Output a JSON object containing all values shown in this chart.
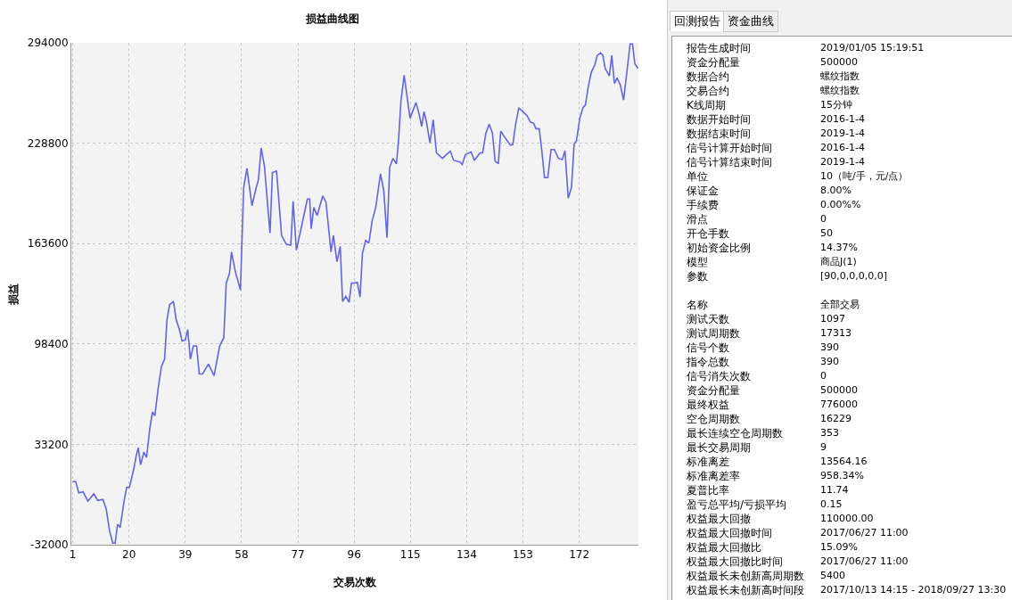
{
  "chart_data": [
    {
      "type": "line",
      "title": "损益曲线图",
      "xlabel": "交易次数",
      "ylabel": "损益",
      "grid": true,
      "marker": "none",
      "line_style": "solid",
      "xlim": [
        0.5,
        192
      ],
      "xticks": [
        1,
        20,
        39,
        58,
        77,
        96,
        115,
        134,
        153,
        172
      ],
      "ylim": [
        -32000,
        294000
      ],
      "yticks": [
        -32000,
        33200,
        98400,
        163600,
        228800,
        294000
      ],
      "x": [
        1,
        2,
        3,
        4.5,
        6.1,
        8.1,
        9.4,
        11.2,
        12.3,
        13.4,
        14.5,
        15.3,
        16.1,
        17,
        18.3,
        19.2,
        20.1,
        21.4,
        22.6,
        23.1,
        23.9,
        25,
        25.9,
        27,
        27.9,
        28.7,
        29.8,
        30.9,
        32,
        32.8,
        33.7,
        35,
        35.9,
        37,
        37.9,
        39,
        39.8,
        40.7,
        41.7,
        42.8,
        43.7,
        44.8,
        46.8,
        48.7,
        50.6,
        52,
        52.8,
        53.9,
        54.6,
        55.9,
        57.6,
        58.7,
        59.8,
        61.5,
        62.8,
        63.7,
        64.6,
        65.7,
        67.6,
        68.4,
        69.8,
        71.5,
        73.1,
        74.6,
        75.4,
        76.5,
        78.2,
        80.2,
        81,
        81.5,
        82.4,
        83.5,
        85.4,
        86.5,
        88.2,
        89,
        90.2,
        91.3,
        92.1,
        93.2,
        94.3,
        95.1,
        97.1,
        98,
        98.8,
        99.9,
        101,
        102.1,
        103.3,
        104.9,
        106,
        107.1,
        108,
        109.1,
        110.3,
        111,
        111.8,
        112.9,
        113.8,
        114.9,
        116.9,
        118,
        118.8,
        119.6,
        120.5,
        121.6,
        122.7,
        123.8,
        125.8,
        126.9,
        128.5,
        129.6,
        131.6,
        132.5,
        133.6,
        135.5,
        136.6,
        138.5,
        139.4,
        140.5,
        141.6,
        142.7,
        143.6,
        144.7,
        145.5,
        147.2,
        148.8,
        149.6,
        150.5,
        151.6,
        153,
        154.4,
        155.5,
        156.6,
        157.4,
        158.5,
        159.4,
        160.3,
        161.4,
        162.5,
        163.6,
        165,
        166.3,
        167.2,
        168.3,
        169.4,
        170.3,
        171.1,
        172.2,
        173.3,
        174.1,
        175,
        176.1,
        177.2,
        178.1,
        179.2,
        180,
        180.8,
        182.2,
        183,
        183.9,
        184.8,
        185.9,
        187,
        188.1,
        189.2,
        190,
        190.8,
        191.9
      ],
      "series": [
        {
          "color": "#6464dc",
          "values": [
            9200,
            8800,
            1700,
            2300,
            -3700,
            1000,
            -3200,
            -2600,
            -9000,
            -23000,
            -31000,
            -31000,
            -18700,
            -20800,
            -3700,
            5300,
            5300,
            15600,
            27400,
            31000,
            19900,
            28100,
            24600,
            43500,
            54200,
            51700,
            69200,
            83600,
            88500,
            114200,
            123900,
            126000,
            114200,
            107800,
            100300,
            100900,
            107800,
            88500,
            97100,
            97100,
            78900,
            78900,
            85300,
            77800,
            97100,
            102500,
            137800,
            144300,
            158200,
            145300,
            133500,
            200000,
            212400,
            188200,
            198900,
            205400,
            225700,
            214000,
            170400,
            209700,
            210700,
            168900,
            163100,
            162500,
            191000,
            159300,
            174300,
            192500,
            192500,
            173200,
            187100,
            181800,
            194600,
            190400,
            158200,
            168900,
            151800,
            161800,
            126000,
            129200,
            125400,
            137800,
            138300,
            128800,
            157100,
            165700,
            164000,
            178600,
            187100,
            209000,
            197900,
            167400,
            212900,
            218900,
            215400,
            230500,
            255800,
            272900,
            260000,
            245000,
            255300,
            247200,
            239700,
            249300,
            241800,
            228900,
            244000,
            222500,
            218900,
            221000,
            223600,
            217600,
            216700,
            215000,
            221500,
            223200,
            217600,
            222500,
            222500,
            235400,
            241200,
            235400,
            217200,
            215400,
            236500,
            231700,
            227500,
            227900,
            240700,
            251500,
            249300,
            246700,
            242500,
            241800,
            238200,
            238200,
            223600,
            206400,
            206400,
            224700,
            224700,
            218900,
            218200,
            224000,
            193100,
            200000,
            228300,
            230500,
            245000,
            251900,
            253600,
            264800,
            275000,
            279300,
            285800,
            287500,
            285800,
            277200,
            272500,
            285800,
            267500,
            271200,
            266500,
            256800,
            275000,
            293300,
            293300,
            280400,
            277200
          ]
        }
      ]
    },
    {
      "type": "other",
      "annotations": [
        "回测报告",
        "资金曲线",
        "报告生成时间",
        "2019/01/05 15:19:51",
        "资金分配量",
        "500000",
        "数据合约",
        "螺纹指数",
        "交易合约",
        "螺纹指数",
        "K线周期",
        "15分钟",
        "数据开始时间",
        "2016-1-4",
        "数据结束时间",
        "2019-1-4",
        "信号计算开始时间",
        "2016-1-4",
        "信号计算结束时间",
        "2019-1-4",
        "单位",
        "10（吨/手，元/点）",
        "保证金",
        "8.00%",
        "手续费",
        "0.00%%",
        "滑点",
        "0",
        "开仓手数",
        "50",
        "初始资金比例",
        "14.37%",
        "模型",
        "商品J(1)",
        "参数",
        "[90,0,0,0,0,0]",
        "名称",
        "全部交易",
        "测试天数",
        "1097",
        "测试周期数",
        "17313",
        "信号个数",
        "390",
        "指令总数",
        "390",
        "信号消失次数",
        "0",
        "资金分配量",
        "500000",
        "最终权益",
        "776000",
        "空仓周期数",
        "16229",
        "最长连续空仓周期数",
        "353",
        "最长交易周期",
        "9",
        "标准离差",
        "13564.16",
        "标准离差率",
        "958.34%",
        "夏普比率",
        "11.74",
        "盈亏总平均/亏损平均",
        "0.15",
        "权益最大回撤",
        "110000.00",
        "权益最大回撤时间",
        "2017/06/27 11:00",
        "权益最大回撤比",
        "15.09%",
        "权益最大回撤比时间",
        "2017/06/27 11:00",
        "权益最长未创新高周期数",
        "5400",
        "权益最长未创新高时间段",
        "2017/10/13 14:15 - 2018/09/27 13:30"
      ]
    }
  ]
}
